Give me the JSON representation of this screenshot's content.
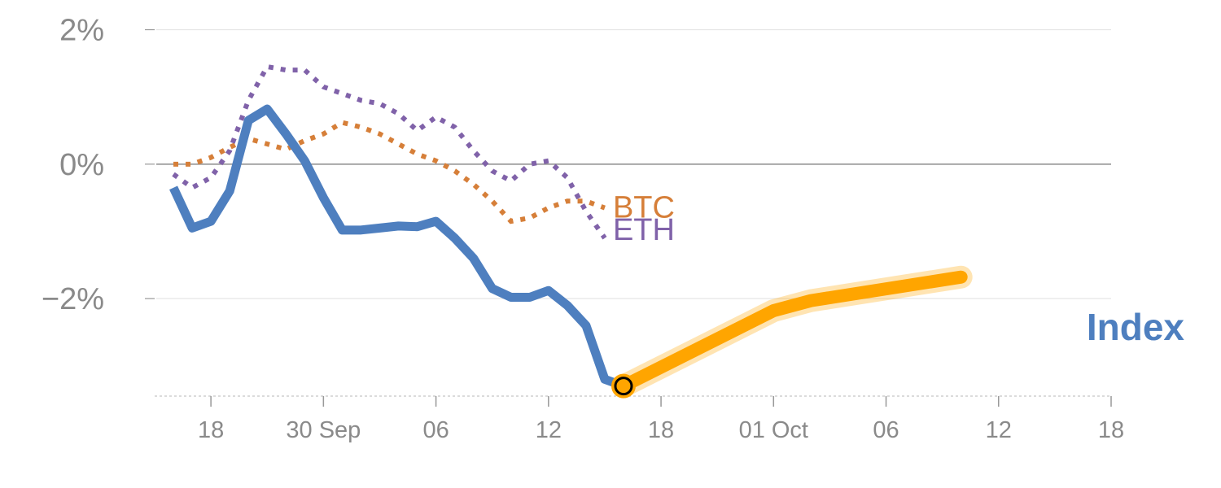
{
  "chart_data": {
    "type": "line",
    "title": "",
    "xlabel": "",
    "ylabel": "",
    "y_ticks": [
      {
        "value": 2,
        "label": "2%"
      },
      {
        "value": 0,
        "label": "0%"
      },
      {
        "value": -2,
        "label": "−2%"
      }
    ],
    "x_tick_labels": [
      "18",
      "30 Sep",
      "06",
      "12",
      "18",
      "01 Oct",
      "06",
      "12",
      "18"
    ],
    "ylim": [
      -3.45,
      2.2
    ],
    "grid": true,
    "zero_line": true,
    "legend": "inline labels at line ends",
    "colors": {
      "index": "#4e7fbf",
      "forecast": "#ffa500",
      "btc": "#d67f39",
      "eth": "#8062a9",
      "marker_fill": "#ffa500",
      "marker_stroke": "#000000"
    },
    "series": [
      {
        "name": "BTC",
        "style": "dotted",
        "x": [
          0,
          1,
          2,
          3,
          4,
          5,
          6,
          7,
          8,
          9,
          10,
          11,
          12,
          13,
          14,
          15,
          16,
          17,
          18,
          19,
          20,
          21,
          22,
          23
        ],
        "values": [
          0.0,
          0.0,
          0.1,
          0.25,
          0.38,
          0.3,
          0.22,
          0.35,
          0.45,
          0.62,
          0.55,
          0.45,
          0.3,
          0.15,
          0.05,
          -0.1,
          -0.3,
          -0.55,
          -0.85,
          -0.8,
          -0.65,
          -0.55,
          -0.55,
          -0.65
        ]
      },
      {
        "name": "ETH",
        "style": "dotted",
        "x": [
          0,
          1,
          2,
          3,
          4,
          5,
          6,
          7,
          8,
          9,
          10,
          11,
          12,
          13,
          14,
          15,
          16,
          17,
          18,
          19,
          20,
          21,
          22,
          23
        ],
        "values": [
          -0.15,
          -0.35,
          -0.2,
          0.2,
          0.95,
          1.45,
          1.4,
          1.4,
          1.15,
          1.05,
          0.95,
          0.9,
          0.75,
          0.5,
          0.7,
          0.55,
          0.2,
          -0.1,
          -0.25,
          0.0,
          0.05,
          -0.2,
          -0.7,
          -1.1
        ]
      },
      {
        "name": "Index",
        "style": "solid",
        "x": [
          0,
          1,
          2,
          3,
          4,
          5,
          6,
          7,
          8,
          9,
          10,
          11,
          12,
          13,
          14,
          15,
          16,
          17,
          18,
          19,
          20,
          21,
          22,
          23,
          24
        ],
        "values": [
          -0.35,
          -0.95,
          -0.85,
          -0.4,
          0.65,
          0.82,
          0.45,
          0.05,
          -0.5,
          -0.98,
          -0.98,
          -0.95,
          -0.92,
          -0.93,
          -0.85,
          -1.1,
          -1.4,
          -1.85,
          -1.98,
          -1.98,
          -1.88,
          -2.1,
          -2.4,
          -3.2,
          -3.3
        ]
      },
      {
        "name": "",
        "style": "solid-thick",
        "x": [
          24,
          32,
          34,
          42
        ],
        "values": [
          -3.3,
          -2.18,
          -2.03,
          -1.68
        ]
      }
    ],
    "x_ticks_pos": [
      2,
      8,
      14,
      20,
      26,
      32,
      38,
      44,
      50
    ],
    "xlim": [
      -1,
      50
    ],
    "marker": {
      "x": 24,
      "value": -3.3
    }
  }
}
